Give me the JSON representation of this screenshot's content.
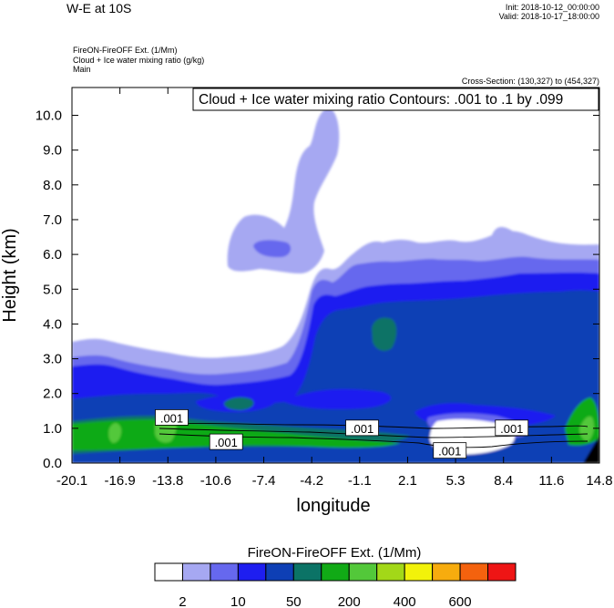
{
  "header": {
    "title": "W-E at 10S",
    "init": "Init: 2018-10-12_00:00:00",
    "valid": "Valid: 2018-10-17_18:00:00",
    "field_line1": "FireON-FireOFF Ext.   (1/Mm)",
    "field_line2": "Cloud + Ice water mixing ratio   (g/kg)",
    "field_line3": "Main",
    "cross_section": "Cross-Section: (130,327) to (454,327)"
  },
  "chart_data": {
    "type": "heatmap",
    "xlabel": "longitude",
    "ylabel": "Height (km)",
    "x_ticks": [
      "-20.1",
      "-16.9",
      "-13.8",
      "-10.6",
      "-7.4",
      "-4.2",
      "-1.1",
      "2.1",
      "5.3",
      "8.4",
      "11.6",
      "14.8"
    ],
    "y_ticks": [
      "0.0",
      "1.0",
      "2.0",
      "3.0",
      "4.0",
      "5.0",
      "6.0",
      "7.0",
      "8.0",
      "9.0",
      "10.0"
    ],
    "xlim": [
      -20.1,
      14.8
    ],
    "ylim": [
      0,
      10.8
    ],
    "contour_annotation": "Cloud + Ice water mixing ratio Contours: .001 to .1 by .099",
    "contour_labels": [
      {
        "text": ".001",
        "x": -13.5,
        "y": 1.3
      },
      {
        "text": ".001",
        "x": -9.9,
        "y": 0.6
      },
      {
        "text": ".001",
        "x": -0.9,
        "y": 1.0
      },
      {
        "text": ".001",
        "x": 4.9,
        "y": 0.35
      },
      {
        "text": ".001",
        "x": 9.0,
        "y": 1.0
      }
    ],
    "colorbar": {
      "title": "FireON-FireOFF Ext.  (1/Mm)",
      "colors": [
        "#ffffff",
        "#a6a8f2",
        "#6668ee",
        "#1e1ef0",
        "#0e3fb5",
        "#0b7366",
        "#11aa16",
        "#53c83a",
        "#a3d818",
        "#f2f20a",
        "#f7ac0e",
        "#f4620e",
        "#ee1515"
      ],
      "tick_labels": [
        "2",
        "10",
        "50",
        "200",
        "400",
        "600"
      ]
    }
  }
}
